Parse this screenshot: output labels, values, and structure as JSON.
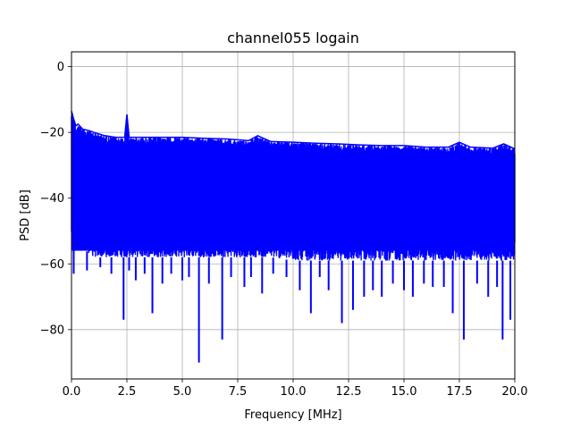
{
  "chart_data": {
    "type": "line",
    "title": "channel055 logain",
    "xlabel": "Frequency [MHz]",
    "ylabel": "PSD [dB]",
    "xlim": [
      0,
      20
    ],
    "ylim": [
      -95,
      4.5
    ],
    "x_ticks": [
      0,
      2.5,
      5,
      7.5,
      10,
      12.5,
      15,
      17.5,
      20
    ],
    "x_tick_labels": [
      "0.0",
      "2.5",
      "5.0",
      "7.5",
      "10.0",
      "12.5",
      "15.0",
      "17.5",
      "20.0"
    ],
    "y_ticks": [
      0,
      -20,
      -40,
      -60,
      -80
    ],
    "y_tick_labels": [
      "0",
      "−20",
      "−40",
      "−60",
      "−80"
    ],
    "grid": true,
    "legend": "none",
    "series_color": "#0000ff",
    "series": [
      {
        "envelope_upper": {
          "x": [
            0,
            0.1,
            0.2,
            0.3,
            0.5,
            0.8,
            1.0,
            1.5,
            2.0,
            2.4,
            2.5,
            2.6,
            3.0,
            4.0,
            5.0,
            6.0,
            7.0,
            8.0,
            8.4,
            9.0,
            10.0,
            11.0,
            12.0,
            13.0,
            14.0,
            15.0,
            16.0,
            17.0,
            17.5,
            18.0,
            19.0,
            19.5,
            20.0
          ],
          "y": [
            -13.5,
            -16,
            -18,
            -17.5,
            -19,
            -19.5,
            -20,
            -21,
            -21.5,
            -21.5,
            -14.5,
            -21.5,
            -21.5,
            -21.5,
            -21.5,
            -21.8,
            -22,
            -22.5,
            -21,
            -22.8,
            -23,
            -23.3,
            -23.5,
            -23.8,
            -24,
            -24,
            -24.5,
            -24.5,
            -23,
            -24.5,
            -24.8,
            -23.5,
            -25
          ]
        },
        "envelope_lower": {
          "x": [
            0,
            1.0,
            2.0,
            3.0,
            4.0,
            5.0,
            6.0,
            7.0,
            8.0,
            9.0,
            10.0,
            11.0,
            12.0,
            13.0,
            14.0,
            15.0,
            16.0,
            17.0,
            18.0,
            19.0,
            20.0
          ],
          "y": [
            -52,
            -58,
            -58,
            -58,
            -58,
            -58,
            -58,
            -58,
            -58,
            -58,
            -59,
            -59,
            -59,
            -59,
            -59,
            -59,
            -59,
            -59,
            -59,
            -59,
            -59
          ]
        },
        "dips": {
          "x": [
            0.1,
            0.7,
            1.3,
            1.8,
            2.35,
            2.6,
            2.9,
            3.3,
            3.65,
            4.1,
            4.5,
            5.0,
            5.3,
            5.75,
            6.2,
            6.8,
            7.2,
            7.8,
            8.1,
            8.6,
            9.1,
            9.7,
            10.3,
            10.8,
            11.2,
            11.6,
            12.2,
            12.7,
            13.2,
            13.6,
            14.0,
            14.5,
            15.0,
            15.4,
            15.9,
            16.3,
            16.8,
            17.2,
            17.7,
            18.3,
            18.8,
            19.2,
            19.45,
            19.8
          ],
          "y": [
            -63,
            -62,
            -61,
            -63,
            -77,
            -62,
            -65,
            -63,
            -75,
            -66,
            -63,
            -65,
            -64,
            -90,
            -66,
            -83,
            -64,
            -67,
            -64,
            -69,
            -63,
            -64,
            -68,
            -75,
            -64,
            -68,
            -78,
            -74,
            -70,
            -68,
            -70,
            -66,
            -68,
            -70,
            -66,
            -67,
            -67,
            -75,
            -83,
            -66,
            -70,
            -67,
            -83,
            -77
          ]
        }
      }
    ]
  }
}
